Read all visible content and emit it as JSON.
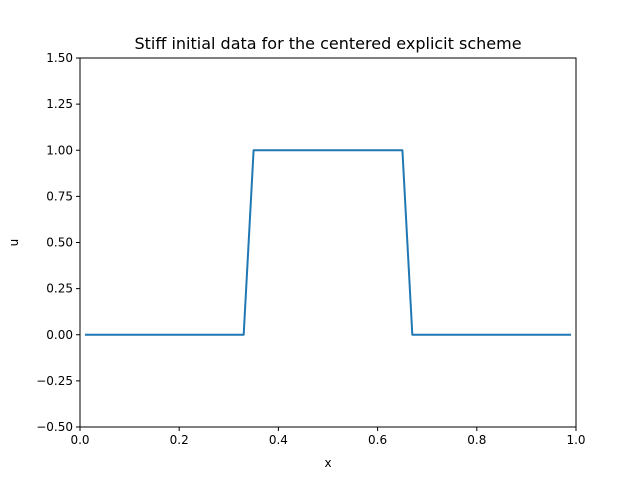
{
  "chart_data": {
    "type": "line",
    "title": "Stiff initial data for the centered explicit scheme",
    "xlabel": "x",
    "ylabel": "u",
    "xlim": [
      0.0,
      1.0
    ],
    "ylim": [
      -0.5,
      1.5
    ],
    "xticks": [
      "0.0",
      "0.2",
      "0.4",
      "0.6",
      "0.8",
      "1.0"
    ],
    "yticks": [
      "−0.50",
      "−0.25",
      "0.00",
      "0.25",
      "0.50",
      "0.75",
      "1.00",
      "1.25",
      "1.50"
    ],
    "grid": false,
    "series": [
      {
        "color": "#1f77b4",
        "x": [
          0.01,
          0.33,
          0.35,
          0.65,
          0.67,
          0.99
        ],
        "y": [
          0,
          0,
          1,
          1,
          0,
          0
        ]
      }
    ]
  }
}
